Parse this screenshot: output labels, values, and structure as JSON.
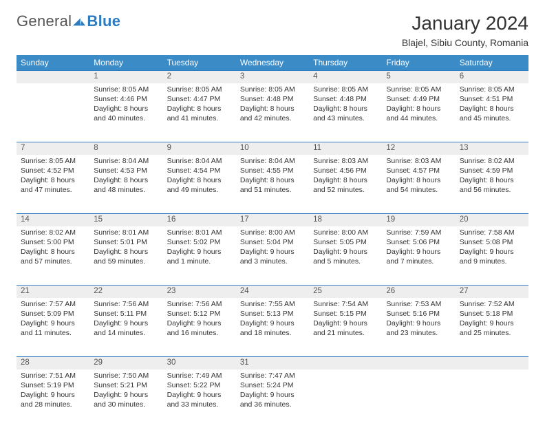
{
  "brand": {
    "name1": "General",
    "name2": "Blue"
  },
  "header": {
    "title": "January 2024",
    "location": "Blajel, Sibiu County, Romania"
  },
  "style": {
    "header_bg": "#3b8bc7",
    "header_text": "#ffffff",
    "daynum_bg": "#eeeeee",
    "rule_color": "#2f7bbf",
    "body_text": "#333333",
    "title_fontsize": 28,
    "location_fontsize": 14,
    "weekday_fontsize": 12,
    "cell_fontsize": 10.5
  },
  "weekdays": [
    "Sunday",
    "Monday",
    "Tuesday",
    "Wednesday",
    "Thursday",
    "Friday",
    "Saturday"
  ],
  "weeks": [
    {
      "nums": [
        "",
        "1",
        "2",
        "3",
        "4",
        "5",
        "6"
      ],
      "cells": [
        {},
        {
          "sunrise": "Sunrise: 8:05 AM",
          "sunset": "Sunset: 4:46 PM",
          "dl1": "Daylight: 8 hours",
          "dl2": "and 40 minutes."
        },
        {
          "sunrise": "Sunrise: 8:05 AM",
          "sunset": "Sunset: 4:47 PM",
          "dl1": "Daylight: 8 hours",
          "dl2": "and 41 minutes."
        },
        {
          "sunrise": "Sunrise: 8:05 AM",
          "sunset": "Sunset: 4:48 PM",
          "dl1": "Daylight: 8 hours",
          "dl2": "and 42 minutes."
        },
        {
          "sunrise": "Sunrise: 8:05 AM",
          "sunset": "Sunset: 4:48 PM",
          "dl1": "Daylight: 8 hours",
          "dl2": "and 43 minutes."
        },
        {
          "sunrise": "Sunrise: 8:05 AM",
          "sunset": "Sunset: 4:49 PM",
          "dl1": "Daylight: 8 hours",
          "dl2": "and 44 minutes."
        },
        {
          "sunrise": "Sunrise: 8:05 AM",
          "sunset": "Sunset: 4:51 PM",
          "dl1": "Daylight: 8 hours",
          "dl2": "and 45 minutes."
        }
      ]
    },
    {
      "nums": [
        "7",
        "8",
        "9",
        "10",
        "11",
        "12",
        "13"
      ],
      "cells": [
        {
          "sunrise": "Sunrise: 8:05 AM",
          "sunset": "Sunset: 4:52 PM",
          "dl1": "Daylight: 8 hours",
          "dl2": "and 47 minutes."
        },
        {
          "sunrise": "Sunrise: 8:04 AM",
          "sunset": "Sunset: 4:53 PM",
          "dl1": "Daylight: 8 hours",
          "dl2": "and 48 minutes."
        },
        {
          "sunrise": "Sunrise: 8:04 AM",
          "sunset": "Sunset: 4:54 PM",
          "dl1": "Daylight: 8 hours",
          "dl2": "and 49 minutes."
        },
        {
          "sunrise": "Sunrise: 8:04 AM",
          "sunset": "Sunset: 4:55 PM",
          "dl1": "Daylight: 8 hours",
          "dl2": "and 51 minutes."
        },
        {
          "sunrise": "Sunrise: 8:03 AM",
          "sunset": "Sunset: 4:56 PM",
          "dl1": "Daylight: 8 hours",
          "dl2": "and 52 minutes."
        },
        {
          "sunrise": "Sunrise: 8:03 AM",
          "sunset": "Sunset: 4:57 PM",
          "dl1": "Daylight: 8 hours",
          "dl2": "and 54 minutes."
        },
        {
          "sunrise": "Sunrise: 8:02 AM",
          "sunset": "Sunset: 4:59 PM",
          "dl1": "Daylight: 8 hours",
          "dl2": "and 56 minutes."
        }
      ]
    },
    {
      "nums": [
        "14",
        "15",
        "16",
        "17",
        "18",
        "19",
        "20"
      ],
      "cells": [
        {
          "sunrise": "Sunrise: 8:02 AM",
          "sunset": "Sunset: 5:00 PM",
          "dl1": "Daylight: 8 hours",
          "dl2": "and 57 minutes."
        },
        {
          "sunrise": "Sunrise: 8:01 AM",
          "sunset": "Sunset: 5:01 PM",
          "dl1": "Daylight: 8 hours",
          "dl2": "and 59 minutes."
        },
        {
          "sunrise": "Sunrise: 8:01 AM",
          "sunset": "Sunset: 5:02 PM",
          "dl1": "Daylight: 9 hours",
          "dl2": "and 1 minute."
        },
        {
          "sunrise": "Sunrise: 8:00 AM",
          "sunset": "Sunset: 5:04 PM",
          "dl1": "Daylight: 9 hours",
          "dl2": "and 3 minutes."
        },
        {
          "sunrise": "Sunrise: 8:00 AM",
          "sunset": "Sunset: 5:05 PM",
          "dl1": "Daylight: 9 hours",
          "dl2": "and 5 minutes."
        },
        {
          "sunrise": "Sunrise: 7:59 AM",
          "sunset": "Sunset: 5:06 PM",
          "dl1": "Daylight: 9 hours",
          "dl2": "and 7 minutes."
        },
        {
          "sunrise": "Sunrise: 7:58 AM",
          "sunset": "Sunset: 5:08 PM",
          "dl1": "Daylight: 9 hours",
          "dl2": "and 9 minutes."
        }
      ]
    },
    {
      "nums": [
        "21",
        "22",
        "23",
        "24",
        "25",
        "26",
        "27"
      ],
      "cells": [
        {
          "sunrise": "Sunrise: 7:57 AM",
          "sunset": "Sunset: 5:09 PM",
          "dl1": "Daylight: 9 hours",
          "dl2": "and 11 minutes."
        },
        {
          "sunrise": "Sunrise: 7:56 AM",
          "sunset": "Sunset: 5:11 PM",
          "dl1": "Daylight: 9 hours",
          "dl2": "and 14 minutes."
        },
        {
          "sunrise": "Sunrise: 7:56 AM",
          "sunset": "Sunset: 5:12 PM",
          "dl1": "Daylight: 9 hours",
          "dl2": "and 16 minutes."
        },
        {
          "sunrise": "Sunrise: 7:55 AM",
          "sunset": "Sunset: 5:13 PM",
          "dl1": "Daylight: 9 hours",
          "dl2": "and 18 minutes."
        },
        {
          "sunrise": "Sunrise: 7:54 AM",
          "sunset": "Sunset: 5:15 PM",
          "dl1": "Daylight: 9 hours",
          "dl2": "and 21 minutes."
        },
        {
          "sunrise": "Sunrise: 7:53 AM",
          "sunset": "Sunset: 5:16 PM",
          "dl1": "Daylight: 9 hours",
          "dl2": "and 23 minutes."
        },
        {
          "sunrise": "Sunrise: 7:52 AM",
          "sunset": "Sunset: 5:18 PM",
          "dl1": "Daylight: 9 hours",
          "dl2": "and 25 minutes."
        }
      ]
    },
    {
      "nums": [
        "28",
        "29",
        "30",
        "31",
        "",
        "",
        ""
      ],
      "cells": [
        {
          "sunrise": "Sunrise: 7:51 AM",
          "sunset": "Sunset: 5:19 PM",
          "dl1": "Daylight: 9 hours",
          "dl2": "and 28 minutes."
        },
        {
          "sunrise": "Sunrise: 7:50 AM",
          "sunset": "Sunset: 5:21 PM",
          "dl1": "Daylight: 9 hours",
          "dl2": "and 30 minutes."
        },
        {
          "sunrise": "Sunrise: 7:49 AM",
          "sunset": "Sunset: 5:22 PM",
          "dl1": "Daylight: 9 hours",
          "dl2": "and 33 minutes."
        },
        {
          "sunrise": "Sunrise: 7:47 AM",
          "sunset": "Sunset: 5:24 PM",
          "dl1": "Daylight: 9 hours",
          "dl2": "and 36 minutes."
        },
        {},
        {},
        {}
      ]
    }
  ]
}
